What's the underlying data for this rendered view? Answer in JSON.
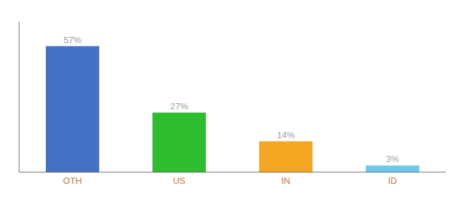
{
  "chart_data": {
    "type": "bar",
    "categories": [
      "OTH",
      "US",
      "IN",
      "ID"
    ],
    "values": [
      57,
      27,
      14,
      3
    ],
    "value_labels": [
      "57%",
      "27%",
      "14%",
      "3%"
    ],
    "colors": [
      "#4472c4",
      "#2ebd2e",
      "#f5a623",
      "#6dc8f0"
    ],
    "ylim": [
      0,
      68
    ],
    "data_labels": true,
    "tick_labels": "x",
    "grid": false
  }
}
